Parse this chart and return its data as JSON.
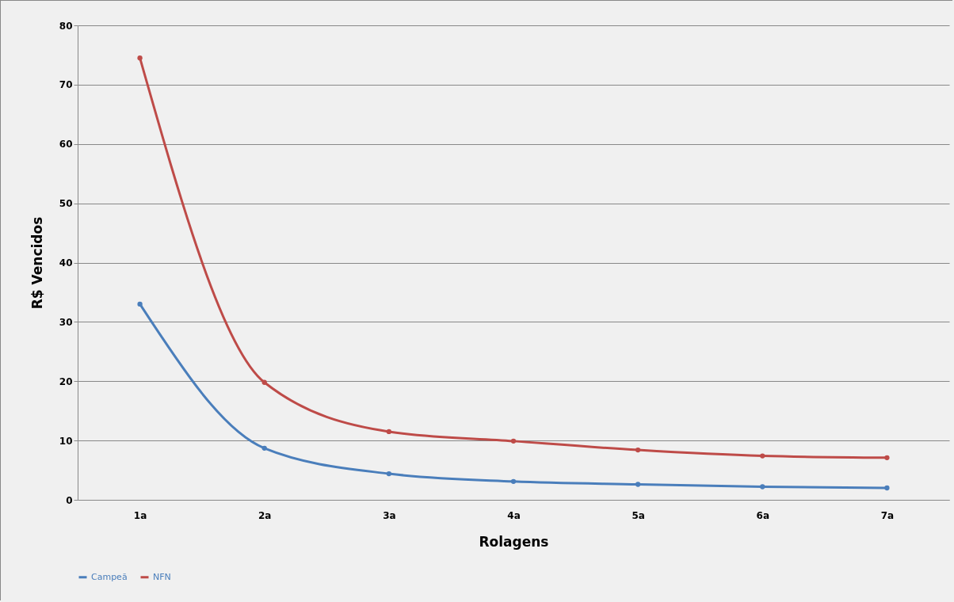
{
  "chart_data": {
    "type": "line",
    "xlabel": "Rolagens",
    "ylabel": "R$ Vencidos",
    "categories": [
      "1a",
      "2a",
      "3a",
      "4a",
      "5a",
      "6a",
      "7a"
    ],
    "series": [
      {
        "name": "Campeã",
        "color": "#4a7ebb",
        "values": [
          33.0,
          8.7,
          4.4,
          3.1,
          2.6,
          2.2,
          2.0
        ]
      },
      {
        "name": "NFN",
        "color": "#be4b48",
        "values": [
          74.5,
          19.8,
          11.5,
          9.9,
          8.4,
          7.4,
          7.1
        ]
      }
    ],
    "ylim": [
      0,
      80
    ],
    "yticks": [
      0,
      10,
      20,
      30,
      40,
      50,
      60,
      70,
      80
    ],
    "grid": "y",
    "legend": "bottom",
    "marker": "circle",
    "line_style": "solid"
  }
}
